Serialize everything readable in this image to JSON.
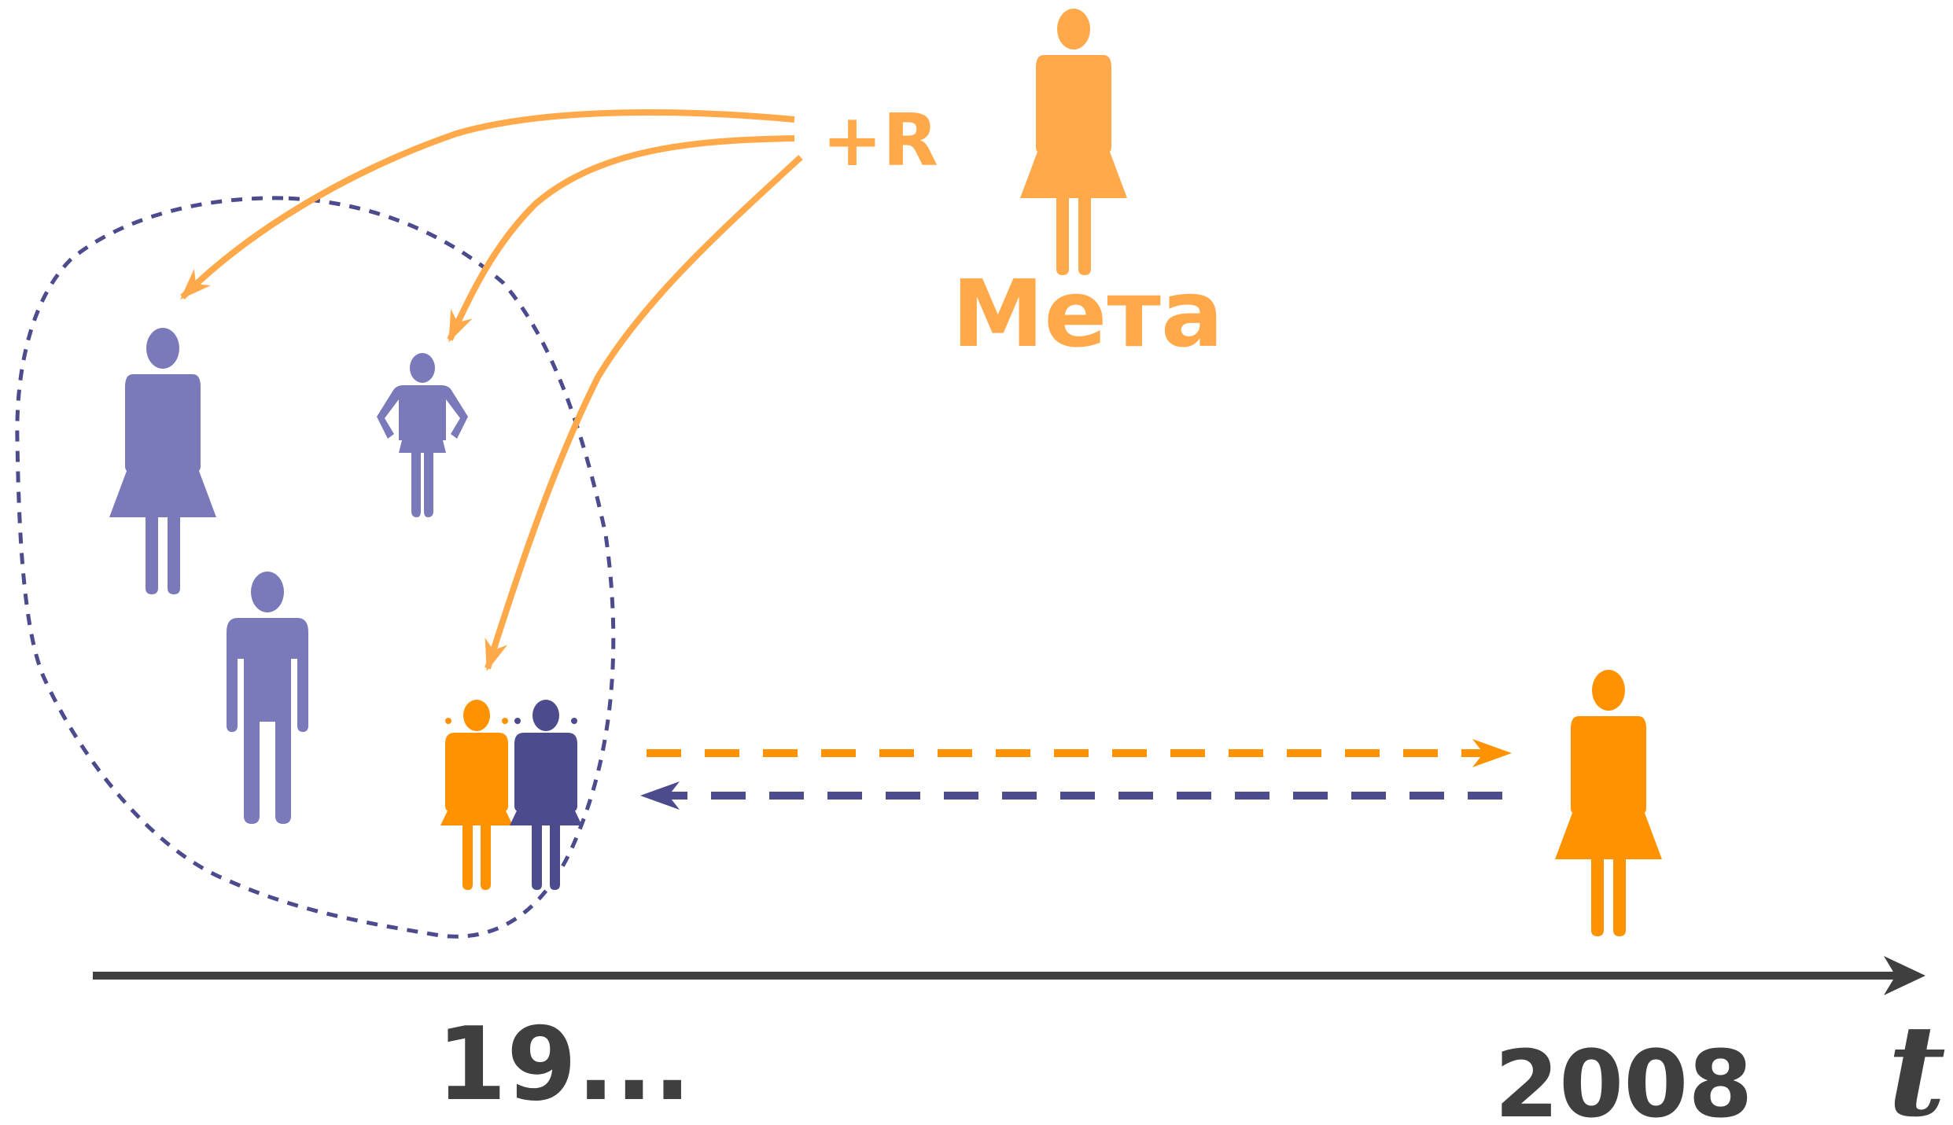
{
  "labels": {
    "plus_r": "+R",
    "meta": "Мета",
    "year_start": "19...",
    "year_end": "2008",
    "axis_t": "t"
  },
  "colors": {
    "orange": "#ffa94a",
    "orange_dark": "#ff9200",
    "purple": "#7a7abb",
    "purple_dark": "#4b4b8d",
    "axis": "#3f3f3f",
    "dashed_outline": "#4b4b8d"
  },
  "icons": {
    "figures": [
      "woman-icon",
      "girl-icon",
      "man-icon",
      "twin-girls-icon",
      "woman-icon"
    ]
  }
}
